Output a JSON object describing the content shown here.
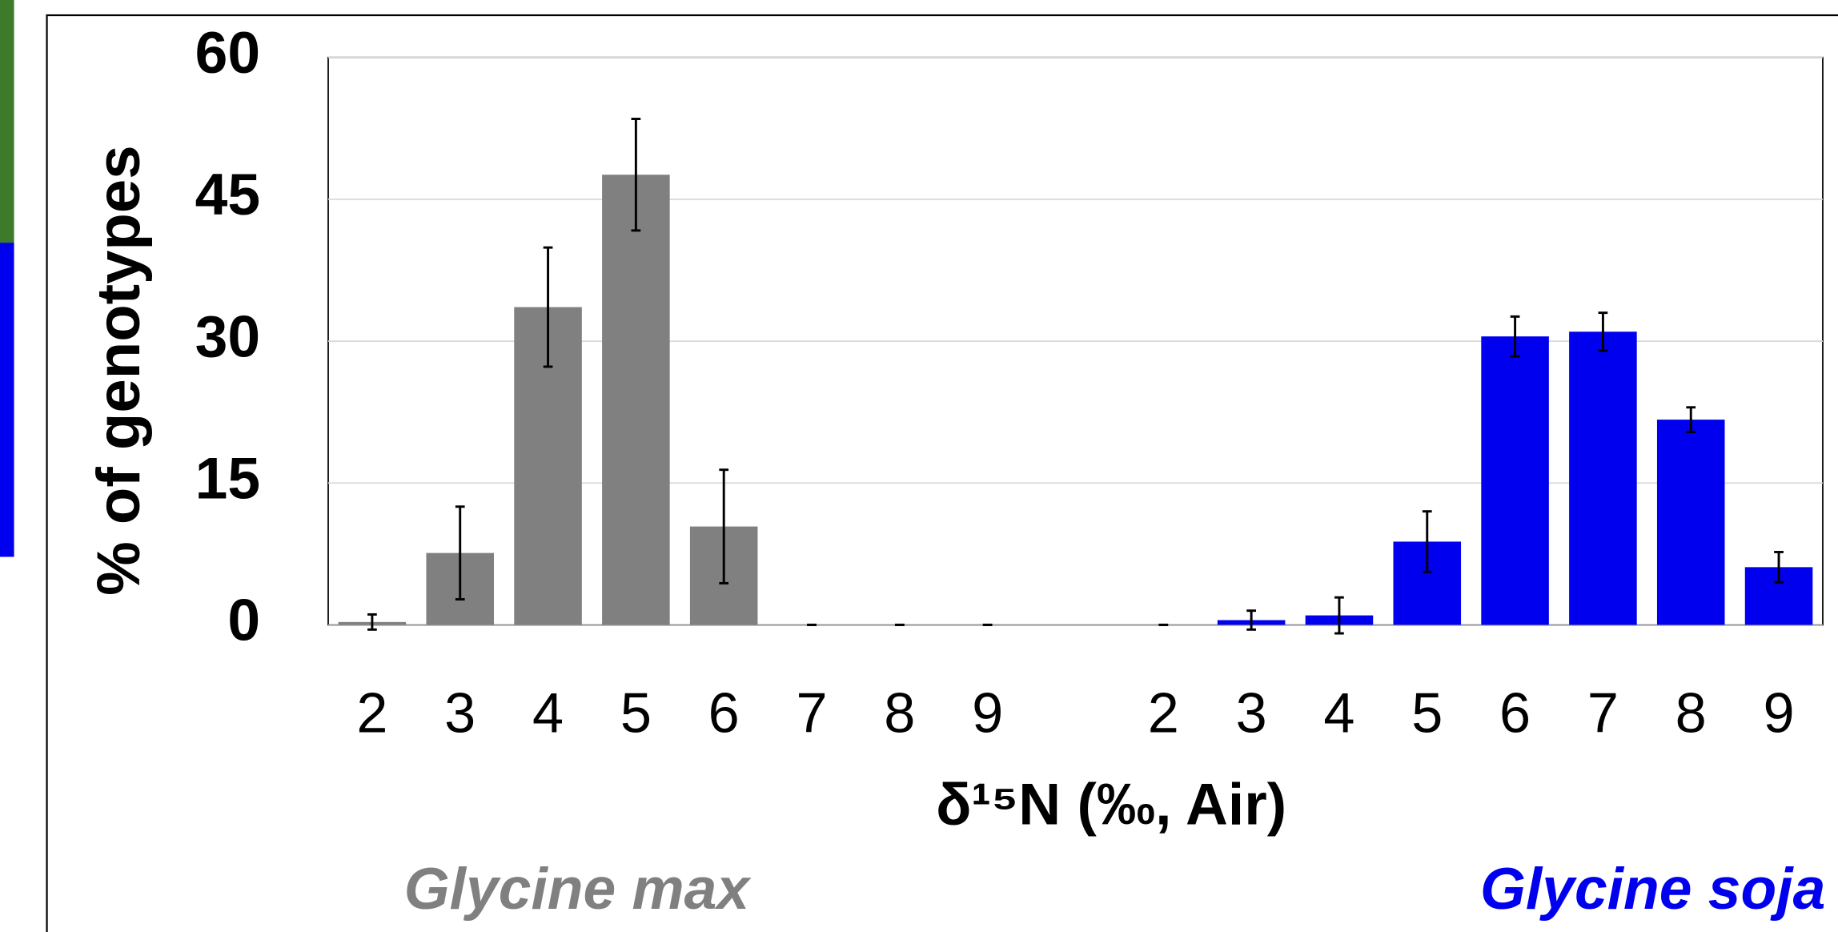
{
  "chart_data": {
    "type": "bar",
    "ylabel": "% of genotypes",
    "xlabel": "δ¹⁵N (‰, Air)",
    "categories": [
      "2",
      "3",
      "4",
      "5",
      "6",
      "7",
      "8",
      "9",
      null,
      "2",
      "3",
      "4",
      "5",
      "6",
      "7",
      "8",
      "9"
    ],
    "series": [
      {
        "name": "Glycine max",
        "color": "#808080",
        "values": [
          0.3,
          7.6,
          33.6,
          47.6,
          10.4,
          0,
          0,
          0,
          null,
          null,
          null,
          null,
          null,
          null,
          null,
          null,
          null
        ],
        "errors": [
          0.8,
          4.9,
          6.3,
          5.9,
          6.0,
          0,
          0,
          0,
          null,
          null,
          null,
          null,
          null,
          null,
          null,
          null,
          null
        ]
      },
      {
        "name": "Glycine soja",
        "color": "#0000ee",
        "values": [
          null,
          null,
          null,
          null,
          null,
          null,
          null,
          null,
          null,
          0,
          0.5,
          1.0,
          8.8,
          30.5,
          31.0,
          21.7,
          6.1
        ],
        "errors": [
          null,
          null,
          null,
          null,
          null,
          null,
          null,
          null,
          null,
          0,
          1.0,
          1.9,
          3.2,
          2.1,
          2.0,
          1.3,
          1.6
        ]
      }
    ],
    "ylim": [
      0,
      60
    ],
    "yticks": [
      0,
      15,
      30,
      45,
      60
    ],
    "grid": true
  }
}
